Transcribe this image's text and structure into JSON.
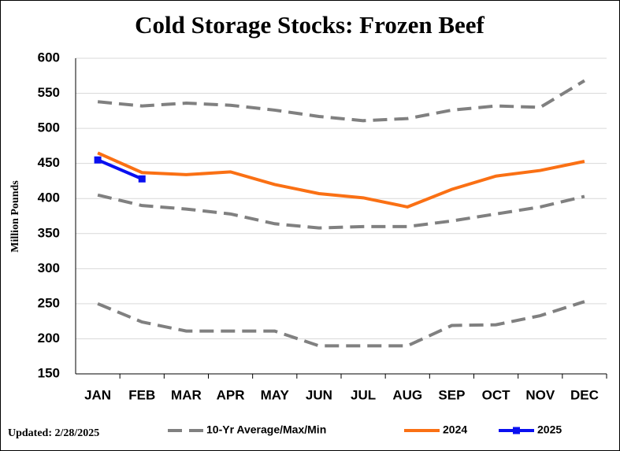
{
  "chart_data": {
    "type": "line",
    "title": "Cold Storage Stocks: Frozen Beef",
    "y_label": "Million Pounds",
    "annotation": "Updated: 2/28/2025",
    "categories": [
      "JAN",
      "FEB",
      "MAR",
      "APR",
      "MAY",
      "JUN",
      "JUL",
      "AUG",
      "SEP",
      "OCT",
      "NOV",
      "DEC"
    ],
    "series": [
      {
        "name": "10-Yr Average/Max/Min",
        "color": "#808080",
        "dashed": true,
        "values": [
          538,
          532,
          536,
          533,
          526,
          517,
          511,
          514,
          526,
          532,
          530,
          568
        ]
      },
      {
        "color": "#808080",
        "dashed": true,
        "values": [
          405,
          390,
          385,
          378,
          364,
          358,
          360,
          360,
          368,
          378,
          388,
          403
        ]
      },
      {
        "color": "#808080",
        "dashed": true,
        "values": [
          250,
          224,
          211,
          211,
          211,
          190,
          190,
          190,
          219,
          220,
          233,
          253
        ]
      },
      {
        "name": "2024",
        "color": "#fa7014",
        "values": [
          465,
          437,
          434,
          438,
          420,
          407,
          401,
          388,
          413,
          432,
          440,
          453
        ]
      },
      {
        "name": "2025",
        "color": "#0a10f0",
        "markers": true,
        "values": [
          455,
          428,
          null,
          null,
          null,
          null,
          null,
          null,
          null,
          null,
          null,
          null
        ]
      }
    ],
    "ylim": [
      150,
      600
    ],
    "yticks": [
      150,
      200,
      250,
      300,
      350,
      400,
      450,
      500,
      550,
      600
    ],
    "grid": true,
    "legend": "bottom"
  }
}
